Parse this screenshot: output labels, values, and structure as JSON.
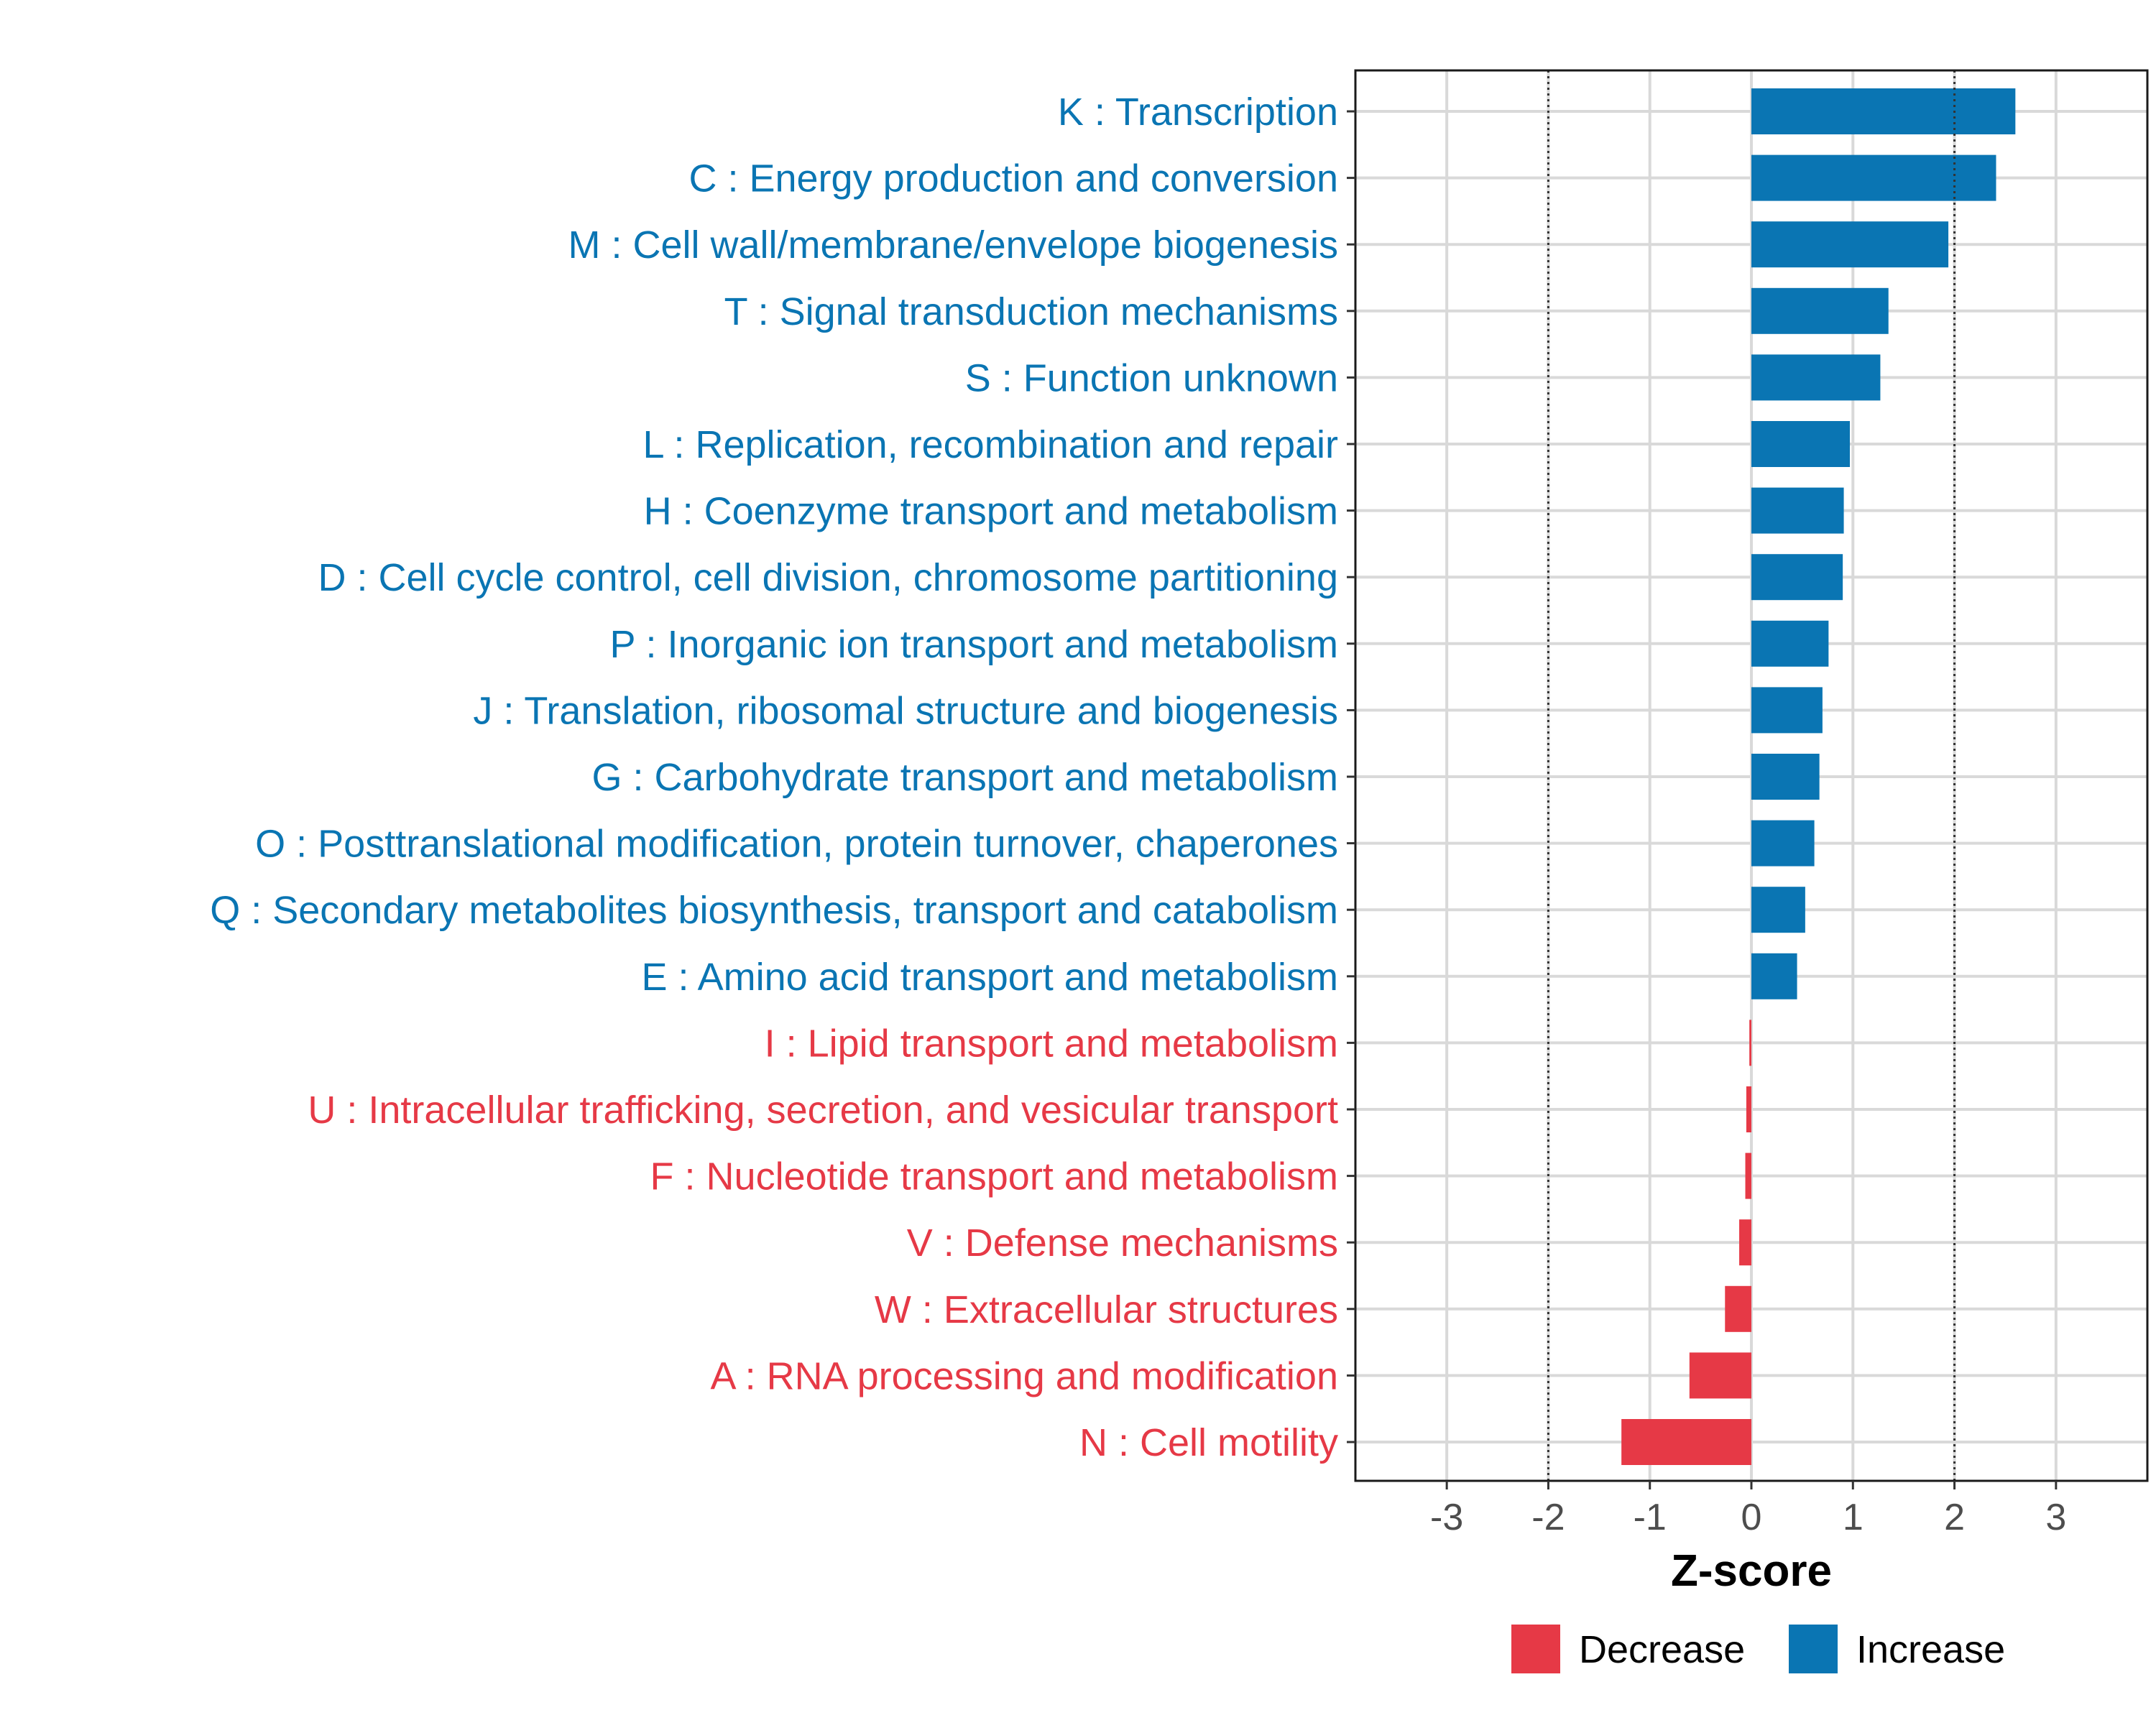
{
  "chart_data": {
    "type": "bar",
    "orientation": "horizontal",
    "xlabel": "Z-score",
    "xlim": [
      -3.9,
      3.9
    ],
    "xticks": [
      "-3",
      "-2",
      "-1",
      "0",
      "1",
      "2",
      "3"
    ],
    "xtick_values": [
      -3,
      -2,
      -1,
      0,
      1,
      2,
      3
    ],
    "reference_lines": [
      -2,
      2
    ],
    "grid": true,
    "legend_position": "bottom",
    "colors": {
      "Decrease": "#e63946",
      "Increase": "#0a75b3"
    },
    "legend": [
      {
        "label": "Decrease",
        "color": "#e63946"
      },
      {
        "label": "Increase",
        "color": "#0a75b3"
      }
    ],
    "categories": [
      "K : Transcription",
      "C : Energy production and conversion",
      "M : Cell wall/membrane/envelope biogenesis",
      "T : Signal transduction mechanisms",
      "S : Function unknown",
      "L : Replication, recombination and repair",
      "H : Coenzyme transport and metabolism",
      "D : Cell cycle control, cell division, chromosome partitioning",
      "P : Inorganic ion transport and metabolism",
      "J : Translation, ribosomal structure and biogenesis",
      "G : Carbohydrate transport and metabolism",
      "O : Posttranslational modification, protein turnover, chaperones",
      "Q : Secondary metabolites biosynthesis, transport and catabolism",
      "E : Amino acid transport and metabolism",
      "I : Lipid transport and metabolism",
      "U : Intracellular trafficking, secretion, and vesicular transport",
      "F : Nucleotide transport and metabolism",
      "V : Defense mechanisms",
      "W : Extracellular structures",
      "A : RNA processing and modification",
      "N : Cell motility"
    ],
    "values": [
      2.6,
      2.41,
      1.94,
      1.35,
      1.27,
      0.97,
      0.91,
      0.9,
      0.76,
      0.7,
      0.67,
      0.62,
      0.53,
      0.45,
      -0.02,
      -0.05,
      -0.06,
      -0.12,
      -0.26,
      -0.61,
      -1.28
    ],
    "groups": [
      "Increase",
      "Increase",
      "Increase",
      "Increase",
      "Increase",
      "Increase",
      "Increase",
      "Increase",
      "Increase",
      "Increase",
      "Increase",
      "Increase",
      "Increase",
      "Increase",
      "Decrease",
      "Decrease",
      "Decrease",
      "Decrease",
      "Decrease",
      "Decrease",
      "Decrease"
    ]
  }
}
